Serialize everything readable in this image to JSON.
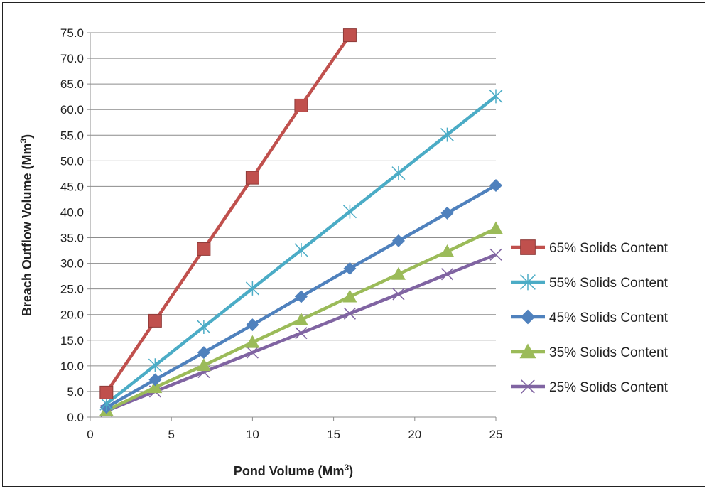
{
  "chart_data": {
    "type": "line",
    "title": "",
    "xlabel": "Pond Volume (Mm",
    "xlabel_sup": "3",
    "xlabel_end": ")",
    "ylabel": "Breach Outflow Volume (Mm",
    "ylabel_sup": "3",
    "ylabel_end": ")",
    "xlim": [
      0,
      25
    ],
    "ylim": [
      0,
      75
    ],
    "xticks": [
      "0",
      "5",
      "10",
      "15",
      "20",
      "25"
    ],
    "yticks": [
      "0.0",
      "5.0",
      "10.0",
      "15.0",
      "20.0",
      "25.0",
      "30.0",
      "35.0",
      "40.0",
      "45.0",
      "50.0",
      "55.0",
      "60.0",
      "65.0",
      "70.0",
      "75.0"
    ],
    "grid": "horizontal",
    "legend_position": "right",
    "series": [
      {
        "name": "65% Solids Content",
        "color": "#C0504D",
        "marker": "square",
        "points": [
          [
            1,
            4.8
          ],
          [
            4,
            18.8
          ],
          [
            7,
            32.8
          ],
          [
            10,
            46.7
          ],
          [
            13,
            60.8
          ],
          [
            16,
            74.5
          ]
        ]
      },
      {
        "name": "55% Solids Content",
        "color": "#4BACC6",
        "marker": "star",
        "points": [
          [
            1,
            2.6
          ],
          [
            4,
            10.1
          ],
          [
            7,
            17.6
          ],
          [
            10,
            25.1
          ],
          [
            13,
            32.6
          ],
          [
            16,
            40.1
          ],
          [
            19,
            47.6
          ],
          [
            22,
            55.1
          ],
          [
            25,
            62.6
          ]
        ]
      },
      {
        "name": "45% Solids Content",
        "color": "#4F81BD",
        "marker": "diamond",
        "points": [
          [
            1,
            1.9
          ],
          [
            4,
            7.3
          ],
          [
            7,
            12.6
          ],
          [
            10,
            18.0
          ],
          [
            13,
            23.5
          ],
          [
            16,
            29.0
          ],
          [
            19,
            34.4
          ],
          [
            22,
            39.8
          ],
          [
            25,
            45.2
          ]
        ]
      },
      {
        "name": "35% Solids Content",
        "color": "#9BBB59",
        "marker": "triangle",
        "points": [
          [
            1,
            1.3
          ],
          [
            4,
            5.8
          ],
          [
            7,
            10.1
          ],
          [
            10,
            14.6
          ],
          [
            13,
            19.0
          ],
          [
            16,
            23.5
          ],
          [
            19,
            27.9
          ],
          [
            22,
            32.3
          ],
          [
            25,
            36.8
          ]
        ]
      },
      {
        "name": "25% Solids Content",
        "color": "#8064A2",
        "marker": "x",
        "points": [
          [
            1,
            1.2
          ],
          [
            4,
            5.0
          ],
          [
            7,
            8.8
          ],
          [
            10,
            12.6
          ],
          [
            13,
            16.4
          ],
          [
            16,
            20.2
          ],
          [
            19,
            24.0
          ],
          [
            22,
            27.9
          ],
          [
            25,
            31.7
          ]
        ]
      }
    ]
  }
}
